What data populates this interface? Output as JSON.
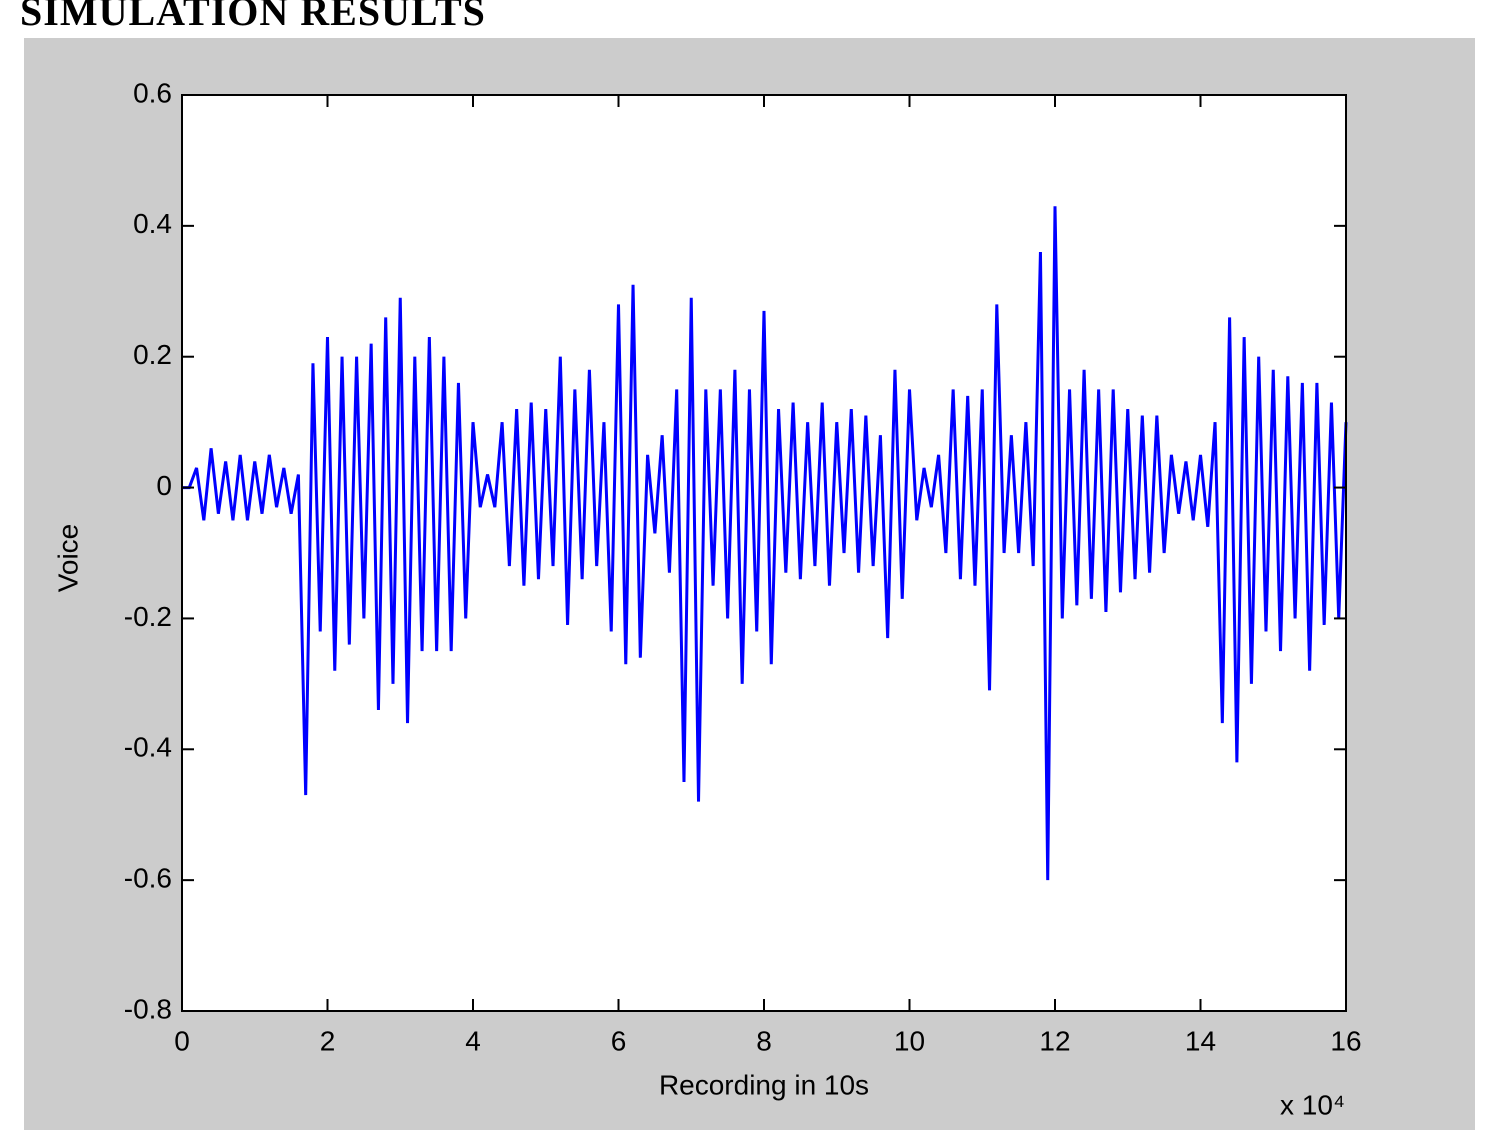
{
  "heading": "SIMULATION RESULTS",
  "chart_data": {
    "type": "line",
    "xlabel": "Recording in 10s",
    "ylabel": "Voice",
    "x_multiplier": "x 10⁴",
    "x": [
      0,
      0.1,
      0.2,
      0.3,
      0.4,
      0.5,
      0.6,
      0.7,
      0.8,
      0.9,
      1,
      1.1,
      1.2,
      1.3,
      1.4,
      1.5,
      1.6,
      1.7,
      1.8,
      1.9,
      2,
      2.1,
      2.2,
      2.3,
      2.4,
      2.5,
      2.6,
      2.7,
      2.8,
      2.9,
      3,
      3.1,
      3.2,
      3.3,
      3.4,
      3.5,
      3.6,
      3.7,
      3.8,
      3.9,
      4,
      4.1,
      4.2,
      4.3,
      4.4,
      4.5,
      4.6,
      4.7,
      4.8,
      4.9,
      5,
      5.1,
      5.2,
      5.3,
      5.4,
      5.5,
      5.6,
      5.7,
      5.8,
      5.9,
      6,
      6.1,
      6.2,
      6.3,
      6.4,
      6.5,
      6.6,
      6.7,
      6.8,
      6.9,
      7,
      7.1,
      7.2,
      7.3,
      7.4,
      7.5,
      7.6,
      7.7,
      7.8,
      7.9,
      8,
      8.1,
      8.2,
      8.3,
      8.4,
      8.5,
      8.6,
      8.7,
      8.8,
      8.9,
      9,
      9.1,
      9.2,
      9.3,
      9.4,
      9.5,
      9.6,
      9.7,
      9.8,
      9.9,
      10,
      10.1,
      10.2,
      10.3,
      10.4,
      10.5,
      10.6,
      10.7,
      10.8,
      10.9,
      11,
      11.1,
      11.2,
      11.3,
      11.4,
      11.5,
      11.6,
      11.7,
      11.8,
      11.9,
      12,
      12.1,
      12.2,
      12.3,
      12.4,
      12.5,
      12.6,
      12.7,
      12.8,
      12.9,
      13,
      13.1,
      13.2,
      13.3,
      13.4,
      13.5,
      13.6,
      13.7,
      13.8,
      13.9,
      14,
      14.1,
      14.2,
      14.3,
      14.4,
      14.5,
      14.6,
      14.7,
      14.8,
      14.9,
      15,
      15.1,
      15.2,
      15.3,
      15.4,
      15.5,
      15.6,
      15.7,
      15.8,
      15.9,
      16
    ],
    "values": [
      0,
      0,
      0.03,
      -0.05,
      0.06,
      -0.04,
      0.04,
      -0.05,
      0.05,
      -0.05,
      0.04,
      -0.04,
      0.05,
      -0.03,
      0.03,
      -0.04,
      0.02,
      -0.47,
      0.19,
      -0.22,
      0.23,
      -0.28,
      0.2,
      -0.24,
      0.2,
      -0.2,
      0.22,
      -0.34,
      0.26,
      -0.3,
      0.29,
      -0.36,
      0.2,
      -0.25,
      0.23,
      -0.25,
      0.2,
      -0.25,
      0.16,
      -0.2,
      0.1,
      -0.03,
      0.02,
      -0.03,
      0.1,
      -0.12,
      0.12,
      -0.15,
      0.13,
      -0.14,
      0.12,
      -0.12,
      0.2,
      -0.21,
      0.15,
      -0.14,
      0.18,
      -0.12,
      0.1,
      -0.22,
      0.28,
      -0.27,
      0.31,
      -0.26,
      0.05,
      -0.07,
      0.08,
      -0.13,
      0.15,
      -0.45,
      0.29,
      -0.48,
      0.15,
      -0.15,
      0.15,
      -0.2,
      0.18,
      -0.3,
      0.15,
      -0.22,
      0.27,
      -0.27,
      0.12,
      -0.13,
      0.13,
      -0.14,
      0.1,
      -0.12,
      0.13,
      -0.15,
      0.1,
      -0.1,
      0.12,
      -0.13,
      0.11,
      -0.12,
      0.08,
      -0.23,
      0.18,
      -0.17,
      0.15,
      -0.05,
      0.03,
      -0.03,
      0.05,
      -0.1,
      0.15,
      -0.14,
      0.14,
      -0.15,
      0.15,
      -0.31,
      0.28,
      -0.1,
      0.08,
      -0.1,
      0.1,
      -0.12,
      0.36,
      -0.6,
      0.43,
      -0.2,
      0.15,
      -0.18,
      0.18,
      -0.17,
      0.15,
      -0.19,
      0.15,
      -0.16,
      0.12,
      -0.14,
      0.11,
      -0.13,
      0.11,
      -0.1,
      0.05,
      -0.04,
      0.04,
      -0.05,
      0.05,
      -0.06,
      0.1,
      -0.36,
      0.26,
      -0.42,
      0.23,
      -0.3,
      0.2,
      -0.22,
      0.18,
      -0.25,
      0.17,
      -0.2,
      0.16,
      -0.28,
      0.16,
      -0.21,
      0.13,
      -0.2,
      0.1
    ],
    "color": "#0000ff",
    "xlim": [
      0,
      16
    ],
    "xticks": [
      0,
      2,
      4,
      6,
      8,
      10,
      12,
      14,
      16
    ],
    "ylim": [
      -0.8,
      0.6
    ],
    "yticks": [
      -0.8,
      -0.6,
      -0.4,
      -0.2,
      0,
      0.2,
      0.4,
      0.6
    ],
    "grid": false
  }
}
